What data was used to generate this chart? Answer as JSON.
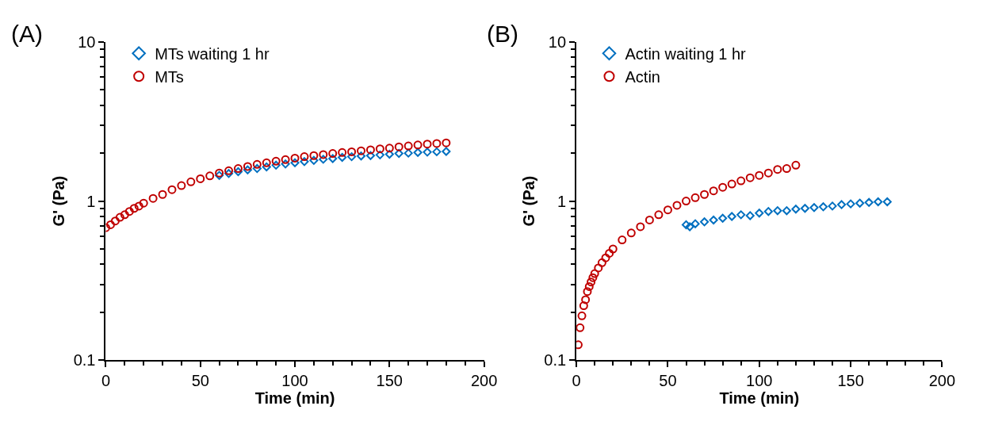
{
  "chart_data": [
    {
      "type": "scatter",
      "xlabel": "Time (min)",
      "ylabel": "G' (Pa)",
      "log": "y",
      "legend": "top left",
      "annotations": [
        "(A)"
      ],
      "xlim": [
        0,
        200
      ],
      "xticks": [
        0,
        {
          "value": 10,
          "label": null
        },
        {
          "value": 20,
          "label": null
        },
        {
          "value": 30,
          "label": null
        },
        {
          "value": 40,
          "label": null
        },
        50,
        {
          "value": 60,
          "label": null
        },
        {
          "value": 70,
          "label": null
        },
        {
          "value": 80,
          "label": null
        },
        {
          "value": 90,
          "label": null
        },
        100,
        {
          "value": 110,
          "label": null
        },
        {
          "value": 120,
          "label": null
        },
        {
          "value": 130,
          "label": null
        },
        {
          "value": 140,
          "label": null
        },
        150,
        {
          "value": 160,
          "label": null
        },
        {
          "value": 170,
          "label": null
        },
        {
          "value": 180,
          "label": null
        },
        {
          "value": 190,
          "label": null
        },
        200
      ],
      "ylim": [
        0.1,
        10
      ],
      "yticks": [
        0.1,
        {
          "value": 0.2,
          "label": null
        },
        {
          "value": 0.3,
          "label": null
        },
        {
          "value": 0.4,
          "label": null
        },
        {
          "value": 0.5,
          "label": null
        },
        {
          "value": 0.6,
          "label": null
        },
        {
          "value": 0.7,
          "label": null
        },
        {
          "value": 0.8,
          "label": null
        },
        {
          "value": 0.9,
          "label": null
        },
        1,
        {
          "value": 2,
          "label": null
        },
        {
          "value": 3,
          "label": null
        },
        {
          "value": 4,
          "label": null
        },
        {
          "value": 5,
          "label": null
        },
        {
          "value": 6,
          "label": null
        },
        {
          "value": 7,
          "label": null
        },
        {
          "value": 8,
          "label": null
        },
        {
          "value": 9,
          "label": null
        },
        10
      ],
      "series": [
        {
          "name": "MTs waiting 1 hr",
          "color": "#0070c0",
          "marker": "diamond",
          "x": [
            60,
            65,
            70,
            75,
            80,
            85,
            90,
            95,
            100,
            105,
            110,
            115,
            120,
            125,
            130,
            135,
            140,
            145,
            150,
            155,
            160,
            165,
            170,
            175,
            180
          ],
          "values": [
            1.45,
            1.49,
            1.53,
            1.57,
            1.6,
            1.64,
            1.68,
            1.71,
            1.74,
            1.77,
            1.8,
            1.83,
            1.85,
            1.88,
            1.9,
            1.92,
            1.93,
            1.95,
            1.97,
            1.99,
            2.0,
            2.02,
            2.03,
            2.04,
            2.05
          ]
        },
        {
          "name": "MTs",
          "color": "#c00000",
          "marker": "circle",
          "x": [
            0,
            2.5,
            5,
            7.5,
            10,
            12.5,
            15,
            17.5,
            20,
            25,
            30,
            35,
            40,
            45,
            50,
            55,
            60,
            65,
            70,
            75,
            80,
            85,
            90,
            95,
            100,
            105,
            110,
            115,
            120,
            125,
            130,
            135,
            140,
            145,
            150,
            155,
            160,
            165,
            170,
            175,
            180
          ],
          "values": [
            0.68,
            0.71,
            0.75,
            0.79,
            0.82,
            0.86,
            0.9,
            0.93,
            0.97,
            1.04,
            1.1,
            1.18,
            1.25,
            1.32,
            1.38,
            1.44,
            1.5,
            1.55,
            1.6,
            1.65,
            1.7,
            1.74,
            1.78,
            1.82,
            1.86,
            1.9,
            1.93,
            1.96,
            1.99,
            2.02,
            2.04,
            2.07,
            2.1,
            2.13,
            2.15,
            2.19,
            2.22,
            2.25,
            2.28,
            2.3,
            2.32
          ]
        }
      ]
    },
    {
      "type": "scatter",
      "xlabel": "Time (min)",
      "ylabel": "G' (Pa)",
      "log": "y",
      "legend": "top left",
      "annotations": [
        "(B)"
      ],
      "xlim": [
        0,
        200
      ],
      "xticks": [
        0,
        {
          "value": 10,
          "label": null
        },
        {
          "value": 20,
          "label": null
        },
        {
          "value": 30,
          "label": null
        },
        {
          "value": 40,
          "label": null
        },
        50,
        {
          "value": 60,
          "label": null
        },
        {
          "value": 70,
          "label": null
        },
        {
          "value": 80,
          "label": null
        },
        {
          "value": 90,
          "label": null
        },
        100,
        {
          "value": 110,
          "label": null
        },
        {
          "value": 120,
          "label": null
        },
        {
          "value": 130,
          "label": null
        },
        {
          "value": 140,
          "label": null
        },
        150,
        {
          "value": 160,
          "label": null
        },
        {
          "value": 170,
          "label": null
        },
        {
          "value": 180,
          "label": null
        },
        {
          "value": 190,
          "label": null
        },
        200
      ],
      "ylim": [
        0.1,
        10
      ],
      "yticks": [
        0.1,
        {
          "value": 0.2,
          "label": null
        },
        {
          "value": 0.3,
          "label": null
        },
        {
          "value": 0.4,
          "label": null
        },
        {
          "value": 0.5,
          "label": null
        },
        {
          "value": 0.6,
          "label": null
        },
        {
          "value": 0.7,
          "label": null
        },
        {
          "value": 0.8,
          "label": null
        },
        {
          "value": 0.9,
          "label": null
        },
        1,
        {
          "value": 2,
          "label": null
        },
        {
          "value": 3,
          "label": null
        },
        {
          "value": 4,
          "label": null
        },
        {
          "value": 5,
          "label": null
        },
        {
          "value": 6,
          "label": null
        },
        {
          "value": 7,
          "label": null
        },
        {
          "value": 8,
          "label": null
        },
        {
          "value": 9,
          "label": null
        },
        10
      ],
      "series": [
        {
          "name": "Actin waiting 1 hr",
          "color": "#0070c0",
          "marker": "diamond",
          "x": [
            60,
            62,
            65,
            70,
            75,
            80,
            85,
            90,
            95,
            100,
            105,
            110,
            115,
            120,
            125,
            130,
            135,
            140,
            145,
            150,
            155,
            160,
            165,
            170
          ],
          "values": [
            0.71,
            0.69,
            0.72,
            0.74,
            0.76,
            0.78,
            0.8,
            0.82,
            0.81,
            0.84,
            0.86,
            0.87,
            0.87,
            0.89,
            0.9,
            0.91,
            0.92,
            0.93,
            0.95,
            0.96,
            0.97,
            0.98,
            0.99,
            0.99
          ]
        },
        {
          "name": "Actin",
          "color": "#c00000",
          "marker": "circle",
          "x": [
            1,
            2,
            3,
            4,
            5,
            6,
            7,
            8,
            9,
            10,
            12,
            14,
            16,
            18,
            20,
            25,
            30,
            35,
            40,
            45,
            50,
            55,
            60,
            65,
            70,
            75,
            80,
            85,
            90,
            95,
            100,
            105,
            110,
            115,
            120
          ],
          "values": [
            0.125,
            0.16,
            0.19,
            0.22,
            0.24,
            0.27,
            0.29,
            0.31,
            0.33,
            0.35,
            0.38,
            0.41,
            0.44,
            0.47,
            0.5,
            0.57,
            0.63,
            0.69,
            0.76,
            0.82,
            0.88,
            0.94,
            1.0,
            1.05,
            1.1,
            1.16,
            1.22,
            1.28,
            1.34,
            1.4,
            1.45,
            1.5,
            1.58,
            1.6,
            1.68
          ]
        }
      ]
    }
  ]
}
